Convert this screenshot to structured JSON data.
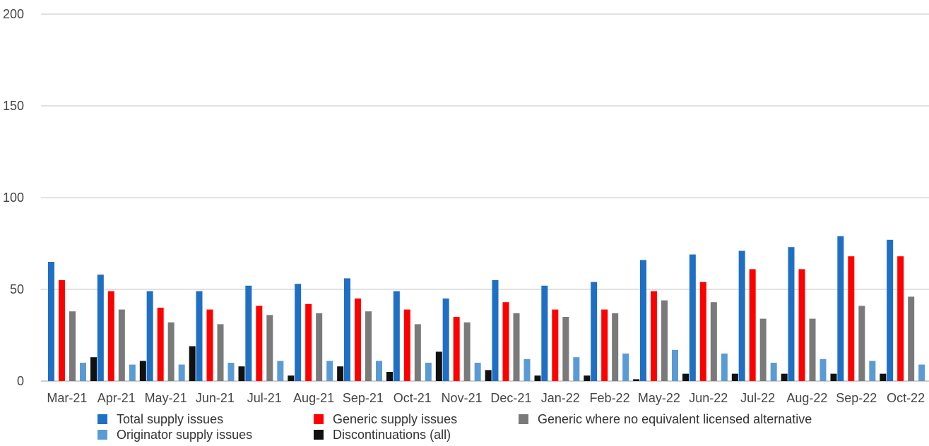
{
  "chart_data": {
    "type": "bar",
    "categories": [
      "Mar-21",
      "Apr-21",
      "May-21",
      "Jun-21",
      "Jul-21",
      "Aug-21",
      "Sep-21",
      "Oct-21",
      "Nov-21",
      "Dec-21",
      "Jan-22",
      "Feb-22",
      "May-22",
      "Jun-22",
      "Jul-22",
      "Aug-22",
      "Sep-22",
      "Oct-22"
    ],
    "series": [
      {
        "name": "Total supply issues",
        "color": "#1f6fc5",
        "values": [
          65,
          58,
          49,
          49,
          52,
          53,
          56,
          49,
          45,
          55,
          52,
          54,
          66,
          69,
          71,
          73,
          79,
          77
        ]
      },
      {
        "name": "Generic supply issues",
        "color": "#ff0000",
        "values": [
          55,
          49,
          40,
          39,
          41,
          42,
          45,
          39,
          35,
          43,
          39,
          39,
          49,
          54,
          61,
          61,
          68,
          68
        ]
      },
      {
        "name": "Generic where no equivalent licensed alternative",
        "color": "#7a7a7a",
        "values": [
          38,
          39,
          32,
          31,
          36,
          37,
          38,
          31,
          32,
          37,
          35,
          37,
          44,
          43,
          34,
          34,
          41,
          46
        ]
      },
      {
        "name": "Originator supply issues",
        "color": "#5b9bd5",
        "values": [
          10,
          9,
          9,
          10,
          11,
          11,
          11,
          10,
          10,
          12,
          13,
          15,
          17,
          15,
          10,
          12,
          11,
          9
        ]
      },
      {
        "name": "Discontinuations (all)",
        "color": "#111111",
        "values": [
          13,
          11,
          19,
          8,
          3,
          8,
          5,
          16,
          6,
          3,
          3,
          1,
          4,
          4,
          4,
          4,
          4,
          3
        ]
      }
    ],
    "title": "",
    "xlabel": "",
    "ylabel": "",
    "ylim": [
      0,
      200
    ],
    "yticks": [
      "0",
      "50",
      "100",
      "150",
      "200"
    ],
    "grid": true,
    "legend_position": "bottom"
  }
}
